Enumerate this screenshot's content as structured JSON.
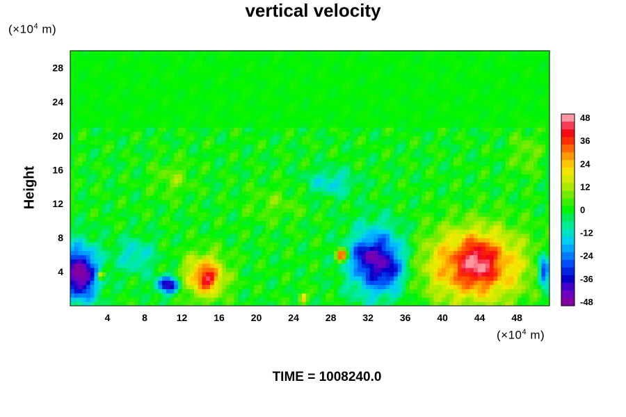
{
  "chart_data": {
    "type": "heatmap",
    "title": "vertical velocity",
    "ylabel": "Height",
    "xlabel": "",
    "y_unit": {
      "prefix": "(×10",
      "exp": "4",
      "suffix": " m)"
    },
    "x_unit": {
      "prefix": "(×10",
      "exp": "4",
      "suffix": " m)"
    },
    "x_ticks": [
      "4",
      "8",
      "12",
      "16",
      "20",
      "24",
      "28",
      "32",
      "36",
      "40",
      "44",
      "48"
    ],
    "y_ticks": [
      "4",
      "8",
      "12",
      "16",
      "20",
      "24",
      "28"
    ],
    "xlim": [
      0,
      51.5
    ],
    "ylim": [
      0,
      30
    ],
    "colorbar": {
      "ticks": [
        "48",
        "36",
        "24",
        "12",
        "0",
        "-12",
        "-24",
        "-36",
        "-48"
      ],
      "range": [
        -48,
        48
      ],
      "step": 4
    },
    "blobs": [
      {
        "x": 43.5,
        "y": 4.8,
        "rx": 5.2,
        "ry": 4.2,
        "v": 38
      },
      {
        "x": 43.8,
        "y": 5.5,
        "rx": 1.6,
        "ry": 2.6,
        "v": 12
      },
      {
        "x": 14.5,
        "y": 3.5,
        "rx": 2.2,
        "ry": 2.5,
        "v": 32
      },
      {
        "x": 14.8,
        "y": 3.2,
        "rx": 0.9,
        "ry": 0.9,
        "v": 12
      },
      {
        "x": 29.2,
        "y": 6.0,
        "rx": 0.6,
        "ry": 0.7,
        "v": 40
      },
      {
        "x": 3.3,
        "y": 3.6,
        "rx": 0.4,
        "ry": 0.5,
        "v": 30
      },
      {
        "x": 1.0,
        "y": 3.8,
        "rx": 2.0,
        "ry": 3.2,
        "v": -44
      },
      {
        "x": 1.2,
        "y": 3.6,
        "rx": 1.0,
        "ry": 1.8,
        "v": -10
      },
      {
        "x": 10.5,
        "y": 2.5,
        "rx": 1.2,
        "ry": 1.0,
        "v": -40
      },
      {
        "x": 33.0,
        "y": 5.2,
        "rx": 2.8,
        "ry": 3.8,
        "v": -40
      },
      {
        "x": 31.5,
        "y": 6.0,
        "rx": 1.2,
        "ry": 1.2,
        "v": -12
      },
      {
        "x": 34.5,
        "y": 4.2,
        "rx": 0.9,
        "ry": 1.6,
        "v": -12
      },
      {
        "x": 50.9,
        "y": 4.2,
        "rx": 0.6,
        "ry": 2.0,
        "v": -36
      },
      {
        "x": 7.0,
        "y": 6.0,
        "rx": 2.0,
        "ry": 2.0,
        "v": -14
      },
      {
        "x": 28.0,
        "y": 14.5,
        "rx": 2.5,
        "ry": 1.5,
        "v": -14
      },
      {
        "x": 22.0,
        "y": 12.0,
        "rx": 3.0,
        "ry": 2.0,
        "v": 6
      },
      {
        "x": 25.0,
        "y": 1.0,
        "rx": 0.4,
        "ry": 0.5,
        "v": 28
      },
      {
        "x": 11.0,
        "y": 15.0,
        "rx": 2.0,
        "ry": 2.0,
        "v": 8
      },
      {
        "x": 49.0,
        "y": 18.0,
        "rx": 1.5,
        "ry": 2.5,
        "v": 8
      }
    ]
  }
}
